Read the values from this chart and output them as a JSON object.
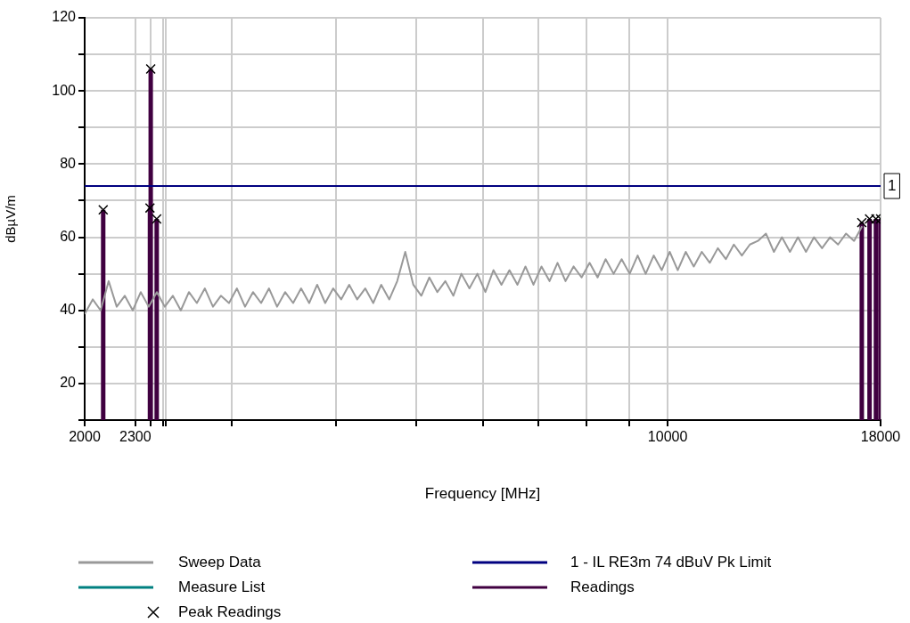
{
  "chart_data": {
    "type": "line",
    "xlabel": "Frequency [MHz]",
    "ylabel": "dBµV/m",
    "log": "x",
    "grid": true,
    "legend": "bottom",
    "xlim": [
      2000,
      18000
    ],
    "ylim": [
      10,
      120
    ],
    "xticks": [
      2000,
      2300,
      {
        "value": 2400,
        "label": null
      },
      {
        "value": 2483.5,
        "label": null
      },
      {
        "value": 2500,
        "label": null
      },
      {
        "value": 3000,
        "label": null
      },
      {
        "value": 4000,
        "label": null
      },
      {
        "value": 5000,
        "label": null
      },
      {
        "value": 6000,
        "label": null
      },
      {
        "value": 7000,
        "label": null
      },
      {
        "value": 8000,
        "label": null
      },
      {
        "value": 9000,
        "label": null
      },
      10000,
      18000
    ],
    "yticks": [
      {
        "value": 10,
        "label": null
      },
      20,
      {
        "value": 30,
        "label": null
      },
      40,
      {
        "value": 50,
        "label": null
      },
      60,
      {
        "value": 70,
        "label": null
      },
      80,
      {
        "value": 90,
        "label": null
      },
      100,
      {
        "value": 110,
        "label": null
      },
      120
    ],
    "annotations": [
      {
        "text": "1",
        "x": 18000,
        "y": 74
      }
    ],
    "series": [
      {
        "name": "Sweep Data",
        "color": "#999999",
        "x": [
          2000,
          2045,
          2090,
          2137,
          2185,
          2234,
          2284,
          2335,
          2387,
          2441,
          2495,
          2551,
          2608,
          2667,
          2726,
          2787,
          2850,
          2913,
          2979,
          3045,
          3114,
          3183,
          3255,
          3327,
          3402,
          3478,
          3556,
          3635,
          3717,
          3800,
          3885,
          3972,
          4060,
          4151,
          4244,
          4339,
          4436,
          4535,
          4637,
          4740,
          4846,
          4955,
          5066,
          5179,
          5295,
          5413,
          5534,
          5658,
          5785,
          5914,
          6046,
          6182,
          6320,
          6461,
          6606,
          6753,
          6904,
          7059,
          7217,
          7378,
          7543,
          7712,
          7885,
          8061,
          8241,
          8426,
          8614,
          8807,
          9004,
          9205,
          9411,
          9622,
          9837,
          10057,
          10282,
          10512,
          10747,
          10988,
          11234,
          11485,
          11742,
          12005,
          12273,
          12548,
          12829,
          13116,
          13409,
          13709,
          14016,
          14330,
          14650,
          14978,
          15313,
          15656,
          16006,
          16364,
          16730,
          17104
        ],
        "values": [
          39,
          43,
          40,
          48,
          41,
          44,
          40,
          45,
          41,
          45,
          41,
          44,
          40,
          45,
          42,
          46,
          41,
          44,
          42,
          46,
          41,
          45,
          42,
          46,
          41,
          45,
          42,
          46,
          42,
          47,
          42,
          46,
          43,
          47,
          43,
          46,
          42,
          47,
          43,
          48,
          56,
          47,
          44,
          49,
          45,
          48,
          44,
          50,
          46,
          50,
          45,
          51,
          47,
          51,
          47,
          52,
          47,
          52,
          48,
          53,
          48,
          52,
          49,
          53,
          49,
          54,
          50,
          54,
          50,
          55,
          50,
          55,
          51,
          56,
          51,
          56,
          52,
          56,
          53,
          57,
          54,
          58,
          55,
          58,
          59,
          61,
          56,
          60,
          56,
          60,
          56,
          60,
          57,
          60,
          58,
          61,
          59,
          63
        ]
      },
      {
        "name": "Measure List",
        "type": "line",
        "color": "#008080"
      },
      {
        "name": "Peak Readings",
        "type": "scatter",
        "marker": "cross",
        "color": "#000000",
        "x": [
          2105,
          2395,
          2400,
          2440,
          17090,
          17460,
          17770,
          18000
        ],
        "values": [
          67.5,
          68,
          106,
          65,
          64,
          65,
          65,
          65
        ]
      },
      {
        "name": "1 - IL RE3m 74 dBuV Pk Limit",
        "color": "#000080",
        "x": [
          2000,
          18000
        ],
        "values": [
          74,
          74
        ]
      },
      {
        "name": "Readings",
        "type": "bar",
        "color": "#400040",
        "x": [
          2105,
          2395,
          2400,
          2440,
          17090,
          17460,
          17770,
          18000
        ],
        "values": [
          67.5,
          68,
          106,
          65,
          64,
          65,
          65,
          65
        ]
      }
    ]
  }
}
